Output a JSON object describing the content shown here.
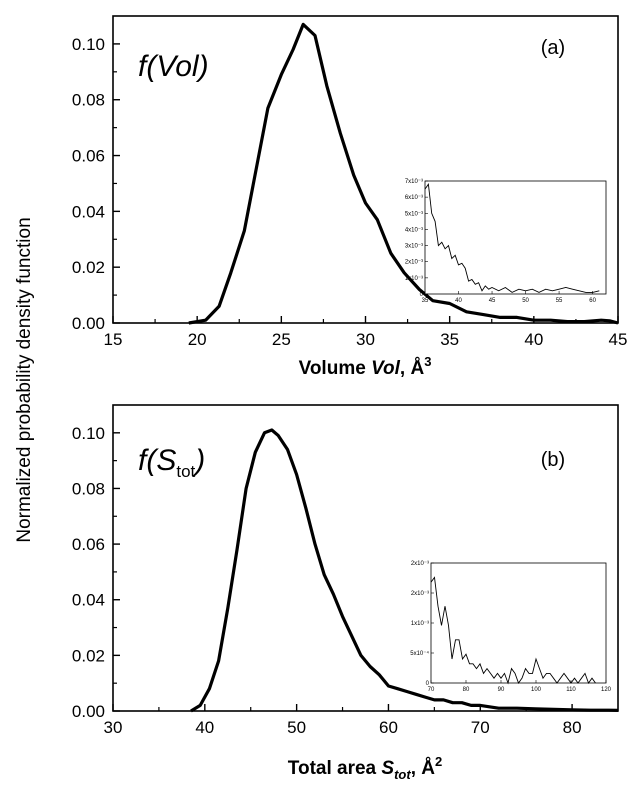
{
  "ylabel": "Normalized probability density function",
  "chart_data": [
    {
      "id": "a",
      "type": "line",
      "panel_label": "(a)",
      "fn": {
        "pre": "f(",
        "main": "Vol",
        "sub": "",
        "post": ")"
      },
      "xlabel": {
        "plain": "Volume ",
        "italic": "Vol",
        "sub": "",
        "tail": ",  Å",
        "sup": "3"
      },
      "xlim": [
        15,
        45
      ],
      "ylim": [
        0,
        0.11
      ],
      "xticks": [
        "15",
        "20",
        "25",
        "30",
        "35",
        "40",
        "45"
      ],
      "yticks": [
        "0.00",
        "0.02",
        "0.04",
        "0.06",
        "0.08",
        "0.10"
      ],
      "x": [
        19.5,
        20.5,
        21.3,
        22.0,
        22.8,
        23.5,
        24.2,
        25.0,
        25.7,
        26.3,
        27.0,
        27.7,
        28.5,
        29.3,
        30.0,
        30.7,
        31.5,
        32.3,
        33.2,
        34.0,
        35.0,
        36.0,
        37.0,
        38.0,
        39.0,
        40.0,
        41.0,
        42.0,
        43.0,
        44.0,
        44.5,
        45.0
      ],
      "y": [
        0.0,
        0.001,
        0.006,
        0.018,
        0.033,
        0.055,
        0.077,
        0.089,
        0.098,
        0.107,
        0.103,
        0.085,
        0.068,
        0.053,
        0.043,
        0.037,
        0.025,
        0.018,
        0.012,
        0.008,
        0.007,
        0.004,
        0.003,
        0.002,
        0.002,
        0.001,
        0.001,
        0.0005,
        0.0005,
        0.001,
        0.0008,
        0.0
      ],
      "inset": {
        "xlim": [
          35,
          62
        ],
        "ylim": [
          0,
          0.007
        ],
        "xticks": [
          "35",
          "40",
          "45",
          "50",
          "55",
          "60"
        ],
        "yticks": [
          "0",
          "1x10⁻³",
          "2x10⁻³",
          "3x10⁻³",
          "4x10⁻³",
          "5x10⁻³",
          "6x10⁻³",
          "7x10⁻³"
        ],
        "x": [
          35,
          35.5,
          36,
          36.5,
          37,
          37.5,
          38,
          38.5,
          39,
          39.5,
          40,
          40.5,
          41,
          41.5,
          42,
          42.5,
          43,
          43.5,
          44,
          44.5,
          45,
          46,
          47,
          48,
          49,
          50,
          51,
          52,
          53,
          54,
          55,
          56,
          57,
          58,
          59,
          60,
          61
        ],
        "y": [
          0.0065,
          0.0068,
          0.005,
          0.0045,
          0.003,
          0.0032,
          0.0028,
          0.003,
          0.0022,
          0.0024,
          0.0018,
          0.0019,
          0.0016,
          0.0008,
          0.0009,
          0.0006,
          0.0007,
          0.0002,
          0.0005,
          0.0003,
          0.0004,
          0.0002,
          0.0004,
          0.0001,
          0.0003,
          0.0002,
          0.0003,
          0.0001,
          0.0003,
          0.0002,
          0.0003,
          0.0004,
          0.0003,
          0.0002,
          0.0001,
          0.0001,
          0.0002
        ]
      }
    },
    {
      "id": "b",
      "type": "line",
      "panel_label": "(b)",
      "fn": {
        "pre": "f(",
        "main": "S",
        "sub": "tot",
        "post": ")"
      },
      "xlabel": {
        "plain": "Total area ",
        "italic": "S",
        "sub": "tot",
        "tail": ", Å",
        "sup": "2"
      },
      "xlim": [
        30,
        85
      ],
      "ylim": [
        0,
        0.11
      ],
      "xticks": [
        "30",
        "40",
        "50",
        "60",
        "70",
        "80"
      ],
      "yticks": [
        "0.00",
        "0.02",
        "0.04",
        "0.06",
        "0.08",
        "0.10"
      ],
      "x": [
        38.5,
        39.5,
        40.5,
        41.5,
        42.5,
        43.5,
        44.5,
        45.5,
        46.5,
        47.3,
        48.0,
        49.0,
        50.0,
        51.0,
        52.0,
        53.0,
        54.0,
        55.0,
        56.0,
        57.0,
        58.0,
        59.0,
        60.0,
        61.0,
        62.0,
        63.0,
        64.0,
        65.0,
        66.0,
        67.0,
        68.0,
        69.0,
        70.0,
        72.0,
        74.0,
        76.0,
        78.0,
        80.0,
        82.0,
        84.0,
        85.0
      ],
      "y": [
        0.0,
        0.002,
        0.008,
        0.018,
        0.037,
        0.058,
        0.08,
        0.093,
        0.1,
        0.101,
        0.099,
        0.094,
        0.085,
        0.073,
        0.06,
        0.049,
        0.042,
        0.034,
        0.027,
        0.02,
        0.016,
        0.013,
        0.009,
        0.008,
        0.007,
        0.006,
        0.005,
        0.004,
        0.004,
        0.003,
        0.003,
        0.002,
        0.002,
        0.001,
        0.001,
        0.0008,
        0.0006,
        0.0004,
        0.0003,
        0.0003,
        0.0002
      ],
      "inset": {
        "xlim": [
          70,
          120
        ],
        "ylim": [
          0,
          0.0025
        ],
        "xticks": [
          "70",
          "80",
          "90",
          "100",
          "110",
          "120"
        ],
        "yticks": [
          "0",
          "5x10⁻⁴",
          "1x10⁻³",
          "2x10⁻³",
          "2x10⁻³"
        ],
        "x": [
          70,
          71,
          72,
          73,
          74,
          75,
          76,
          77,
          78,
          79,
          80,
          81,
          82,
          83,
          84,
          85,
          86,
          87,
          88,
          89,
          90,
          91,
          92,
          93,
          94,
          95,
          96,
          97,
          98,
          99,
          100,
          101,
          102,
          103,
          104,
          105,
          106,
          107,
          108,
          109,
          110,
          111,
          112,
          113,
          114,
          115,
          116,
          117
        ],
        "y": [
          0.0021,
          0.0022,
          0.0016,
          0.0012,
          0.0016,
          0.0012,
          0.0005,
          0.0009,
          0.0009,
          0.0005,
          0.0006,
          0.0004,
          0.0004,
          0.0003,
          0.0004,
          0.0002,
          0.0003,
          0.0002,
          0.0001,
          0.0002,
          0.0001,
          0.0002,
          0.0,
          0.0003,
          0.0002,
          0.0,
          0.0001,
          0.0003,
          0.0002,
          0.0002,
          0.0005,
          0.0003,
          0.0001,
          0.0002,
          0.0002,
          0.0001,
          0.0,
          0.0001,
          0.0002,
          0.0001,
          0.0,
          0.0001,
          0.0,
          0.0001,
          0.0002,
          0.0,
          0.0001,
          0.0
        ]
      }
    }
  ]
}
